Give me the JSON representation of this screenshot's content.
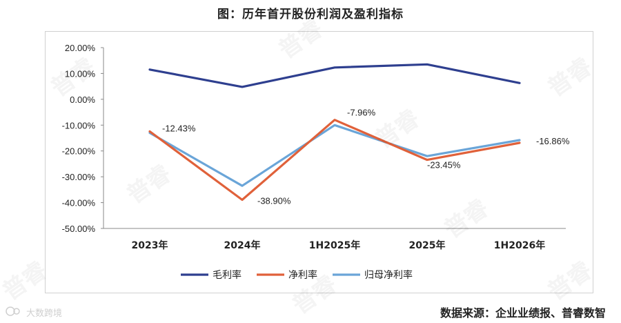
{
  "title": "图：历年首开股份利润及盈利指标",
  "source": "数据来源：企业业绩报、普睿数智",
  "watermark": "普睿",
  "watermark_corner": "大数跨境",
  "chart_data": {
    "type": "line",
    "categories": [
      "2023年",
      "2024年",
      "1H2025年",
      "2025年",
      "1H2026年"
    ],
    "ylim": [
      -50,
      20
    ],
    "yticks": [
      20,
      10,
      0,
      -10,
      -20,
      -30,
      -40,
      -50
    ],
    "ytick_labels": [
      "20.00%",
      "10.00%",
      "0.00%",
      "-10.00%",
      "-20.00%",
      "-30.00%",
      "-40.00%",
      "-50.00%"
    ],
    "legend_position": "bottom",
    "grid": false,
    "series": [
      {
        "name": "毛利率",
        "color": "#2e3f8f",
        "values": [
          11.5,
          4.8,
          12.3,
          13.5,
          6.3
        ]
      },
      {
        "name": "净利率",
        "color": "#e0613a",
        "values": [
          -12.43,
          -38.9,
          -7.96,
          -23.45,
          -16.86
        ]
      },
      {
        "name": "归母净利率",
        "color": "#6aa5d8",
        "values": [
          -13.0,
          -33.5,
          -10.0,
          -22.0,
          -15.8
        ]
      }
    ],
    "data_labels": [
      {
        "series": 1,
        "index": 0,
        "text": "-12.43%"
      },
      {
        "series": 1,
        "index": 1,
        "text": "-38.90%"
      },
      {
        "series": 1,
        "index": 2,
        "text": "-7.96%"
      },
      {
        "series": 1,
        "index": 3,
        "text": "-23.45%"
      },
      {
        "series": 1,
        "index": 4,
        "text": "-16.86%"
      }
    ]
  }
}
